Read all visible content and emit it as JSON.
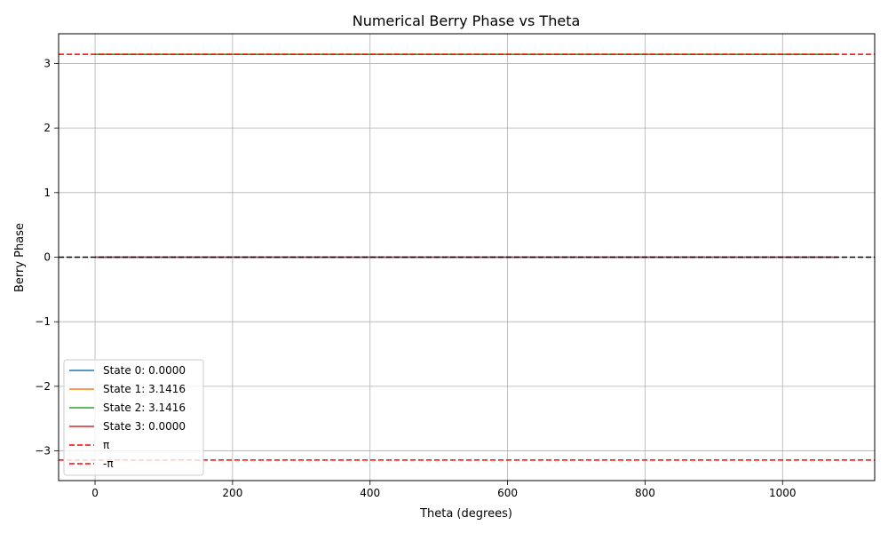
{
  "chart_data": {
    "type": "line",
    "title": "Numerical Berry Phase vs Theta",
    "xlabel": "Theta (degrees)",
    "ylabel": "Berry Phase",
    "xlim": [
      -53,
      1134
    ],
    "ylim": [
      -3.46,
      3.46
    ],
    "xticks": [
      0,
      200,
      400,
      600,
      800,
      1000
    ],
    "yticks": [
      -3,
      -2,
      -1,
      0,
      1,
      2,
      3
    ],
    "xtick_labels": [
      "0",
      "200",
      "400",
      "600",
      "800",
      "1000"
    ],
    "ytick_labels": [
      "−3",
      "−2",
      "−1",
      "0",
      "1",
      "2",
      "3"
    ],
    "grid": true,
    "legend_position": "lower-left",
    "series": [
      {
        "name": "State 0: 0.0000",
        "color": "#1f77b4",
        "x": [
          0,
          1080
        ],
        "y": [
          0.0,
          0.0
        ]
      },
      {
        "name": "State 1: 3.1416",
        "color": "#ff7f0e",
        "x": [
          0,
          1080
        ],
        "y": [
          3.1416,
          3.1416
        ]
      },
      {
        "name": "State 2: 3.1416",
        "color": "#2ca02c",
        "x": [
          0,
          1080
        ],
        "y": [
          3.1416,
          3.1416
        ]
      },
      {
        "name": "State 3: 0.0000",
        "color": "#d62728",
        "x": [
          0,
          1080
        ],
        "y": [
          0.0,
          0.0
        ]
      }
    ],
    "reference_lines": [
      {
        "name": "π",
        "y": 3.1416,
        "color": "#ff0000",
        "style": "dashed",
        "in_legend": true
      },
      {
        "name": "-π",
        "y": -3.1416,
        "color": "#ff0000",
        "style": "dashed",
        "in_legend": true
      },
      {
        "name": "",
        "y": 0,
        "color": "#000000",
        "style": "dashed",
        "in_legend": false
      }
    ]
  }
}
